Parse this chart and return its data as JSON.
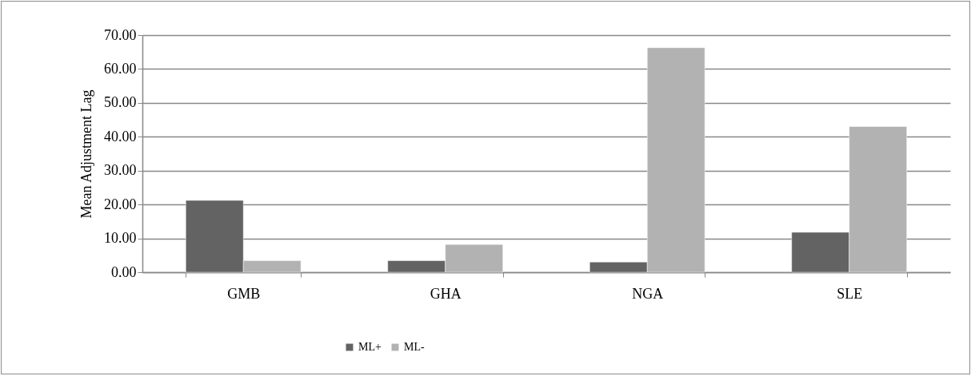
{
  "chart_data": {
    "type": "bar",
    "ylabel": "Mean Adjustment Lag",
    "categories": [
      "GMB",
      "GHA",
      "NGA",
      "SLE"
    ],
    "series": [
      {
        "name": "ML+",
        "color": "#636363",
        "values": [
          21.2,
          3.4,
          3.0,
          11.8
        ]
      },
      {
        "name": "ML-",
        "color": "#b2b2b2",
        "values": [
          3.4,
          8.2,
          66.3,
          43.0
        ]
      }
    ],
    "ylim": [
      0,
      70
    ],
    "yticks": [
      {
        "value": 0,
        "label": "0.00"
      },
      {
        "value": 10,
        "label": "10.00"
      },
      {
        "value": 20,
        "label": "20.00"
      },
      {
        "value": 30,
        "label": "30.00"
      },
      {
        "value": 40,
        "label": "40.00"
      },
      {
        "value": 50,
        "label": "50.00"
      },
      {
        "value": 60,
        "label": "60.00"
      },
      {
        "value": 70,
        "label": "70.00"
      }
    ],
    "grid": true,
    "legend": "bottom"
  }
}
